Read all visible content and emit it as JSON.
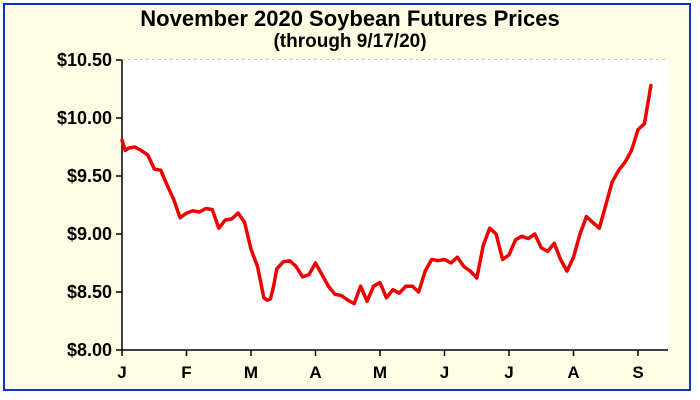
{
  "chart_data": {
    "type": "line",
    "title": "November 2020 Soybean Futures Prices",
    "subtitle": "(through 9/17/20)",
    "xlabel": "",
    "ylabel": "",
    "x_tick_labels": [
      "J",
      "F",
      "M",
      "A",
      "M",
      "J",
      "J",
      "A",
      "S"
    ],
    "xlim": [
      0,
      9
    ],
    "ylim": [
      8.0,
      10.5
    ],
    "y_tick_values": [
      8.0,
      8.5,
      9.0,
      9.5,
      10.0,
      10.5
    ],
    "y_tick_labels": [
      "$8.00",
      "$8.50",
      "$9.00",
      "$9.50",
      "$10.00",
      "$10.50"
    ],
    "grid": "horizontal-dashed",
    "legend": "none",
    "line_color": "#ee0000",
    "series": [
      {
        "x": [
          0.0,
          0.05,
          0.1,
          0.2,
          0.3,
          0.4,
          0.5,
          0.6,
          0.7,
          0.8,
          0.9,
          1.0,
          1.1,
          1.2,
          1.3,
          1.4,
          1.5,
          1.6,
          1.7,
          1.8,
          1.9,
          2.0,
          2.1,
          2.2,
          2.25,
          2.3,
          2.35,
          2.4,
          2.5,
          2.6,
          2.7,
          2.8,
          2.9,
          3.0,
          3.1,
          3.2,
          3.3,
          3.4,
          3.5,
          3.6,
          3.7,
          3.8,
          3.9,
          4.0,
          4.1,
          4.2,
          4.3,
          4.4,
          4.5,
          4.6,
          4.7,
          4.8,
          4.9,
          5.0,
          5.1,
          5.2,
          5.3,
          5.4,
          5.5,
          5.6,
          5.7,
          5.8,
          5.9,
          6.0,
          6.1,
          6.2,
          6.3,
          6.4,
          6.5,
          6.6,
          6.7,
          6.8,
          6.9,
          7.0,
          7.1,
          7.2,
          7.3,
          7.4,
          7.5,
          7.6,
          7.7,
          7.8,
          7.9,
          8.0,
          8.1,
          8.2
        ],
        "y": [
          9.81,
          9.72,
          9.74,
          9.75,
          9.72,
          9.68,
          9.56,
          9.55,
          9.42,
          9.3,
          9.14,
          9.18,
          9.2,
          9.19,
          9.22,
          9.21,
          9.05,
          9.12,
          9.13,
          9.18,
          9.1,
          8.87,
          8.72,
          8.45,
          8.43,
          8.44,
          8.55,
          8.7,
          8.76,
          8.77,
          8.72,
          8.63,
          8.65,
          8.75,
          8.65,
          8.55,
          8.48,
          8.47,
          8.43,
          8.4,
          8.55,
          8.42,
          8.55,
          8.58,
          8.45,
          8.52,
          8.49,
          8.55,
          8.55,
          8.5,
          8.68,
          8.78,
          8.77,
          8.78,
          8.75,
          8.8,
          8.72,
          8.68,
          8.62,
          8.9,
          9.05,
          9.0,
          8.78,
          8.82,
          8.95,
          8.98,
          8.96,
          9.0,
          8.88,
          8.85,
          8.92,
          8.78,
          8.68,
          8.8,
          9.0,
          9.15,
          9.1,
          9.05,
          9.25,
          9.45,
          9.55,
          9.62,
          9.72,
          9.9,
          9.95,
          10.28
        ]
      }
    ]
  }
}
